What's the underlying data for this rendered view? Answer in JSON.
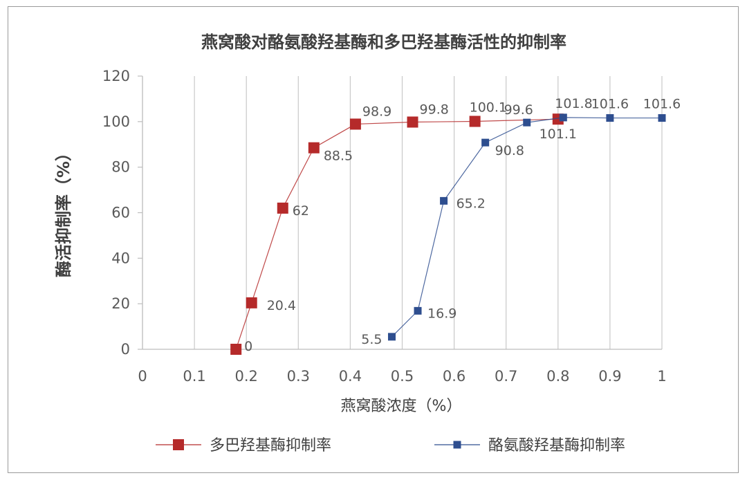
{
  "chart_data": {
    "type": "scatter",
    "title": "燕窝酸对酪氨酸羟基酶和多巴羟基酶活性的抑制率",
    "xlabel": "燕窝酸浓度（%）",
    "ylabel": "酶活抑制率（%）",
    "xlim": [
      0,
      1
    ],
    "ylim": [
      0,
      120
    ],
    "xticks": [
      "0",
      "0.1",
      "0.2",
      "0.3",
      "0.4",
      "0.5",
      "0.6",
      "0.7",
      "0.8",
      "0.9",
      "1"
    ],
    "yticks": [
      "0",
      "20",
      "40",
      "60",
      "80",
      "100",
      "120"
    ],
    "grid": "vertical",
    "legend_position": "bottom",
    "series": [
      {
        "name": "多巴羟基酶抑制率",
        "color": "#b52a2a",
        "marker": "square-large",
        "x": [
          0.18,
          0.21,
          0.27,
          0.33,
          0.41,
          0.52,
          0.64,
          0.8
        ],
        "y": [
          0,
          20.4,
          62,
          88.5,
          98.9,
          99.8,
          100.1,
          101.1
        ],
        "labels": [
          "0",
          "20.4",
          "62",
          "88.5",
          "98.9",
          "99.8",
          "100.1",
          "101.1"
        ]
      },
      {
        "name": "酪氨酸羟基酶抑制率",
        "color": "#2e4e8f",
        "marker": "square-small",
        "x": [
          0.48,
          0.53,
          0.58,
          0.66,
          0.74,
          0.81,
          0.9,
          1.0
        ],
        "y": [
          5.5,
          16.9,
          65.2,
          90.8,
          99.6,
          101.8,
          101.6,
          101.6
        ],
        "labels": [
          "5.5",
          "16.9",
          "65.2",
          "90.8",
          "99.6",
          "101.8",
          "101.6",
          "101.6"
        ]
      }
    ]
  }
}
